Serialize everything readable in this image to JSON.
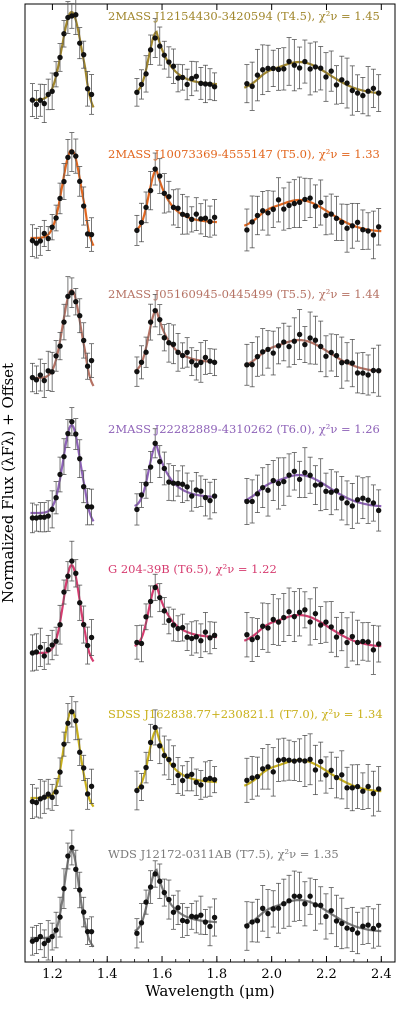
{
  "chart_data": {
    "type": "line",
    "xlabel": "Wavelength (μm)",
    "ylabel": "Normalized Flux (λFλ) + Offset",
    "xlim": [
      1.1,
      2.45
    ],
    "x_ticks": [
      "1.2",
      "1.4",
      "1.6",
      "1.8",
      "2.0",
      "2.2",
      "2.4"
    ],
    "x_tick_values": [
      1.2,
      1.4,
      1.6,
      1.8,
      2.0,
      2.2,
      2.4
    ],
    "legend_placement": "label above each spectrum",
    "series": [
      {
        "name": "2MASS J12154430-3420594 (T4.5), χ²ν = 1.45",
        "color": "#a0862b"
      },
      {
        "name": "2MASS J10073369-4555147 (T5.0), χ²ν = 1.33",
        "color": "#e2661e"
      },
      {
        "name": "2MASS J05160945-0445499 (T5.5), χ²ν = 1.44",
        "color": "#b57264"
      },
      {
        "name": "2MASS J22282889-4310262 (T6.0), χ²ν = 1.26",
        "color": "#8e62b8"
      },
      {
        "name": "G 204-39B (T6.5), χ²ν = 1.22",
        "color": "#d63b6f"
      },
      {
        "name": "SDSS J162838.77+230821.1 (T7.0), χ²ν = 1.34",
        "color": "#c9b019"
      },
      {
        "name": "WDS J12172-0311AB (T7.5), χ²ν = 1.35",
        "color": "#7a7a7a"
      }
    ],
    "band_shape": {
      "J": {
        "range": [
          1.12,
          1.35
        ],
        "peak_x": 1.27,
        "relative_peak": 1.0
      },
      "H": {
        "range": [
          1.5,
          1.8
        ],
        "peak_x": 1.58,
        "relative_peak": 0.8
      },
      "K": {
        "range": [
          1.9,
          2.4
        ],
        "peak_x": 2.1,
        "relative_peak": 0.5
      }
    }
  }
}
